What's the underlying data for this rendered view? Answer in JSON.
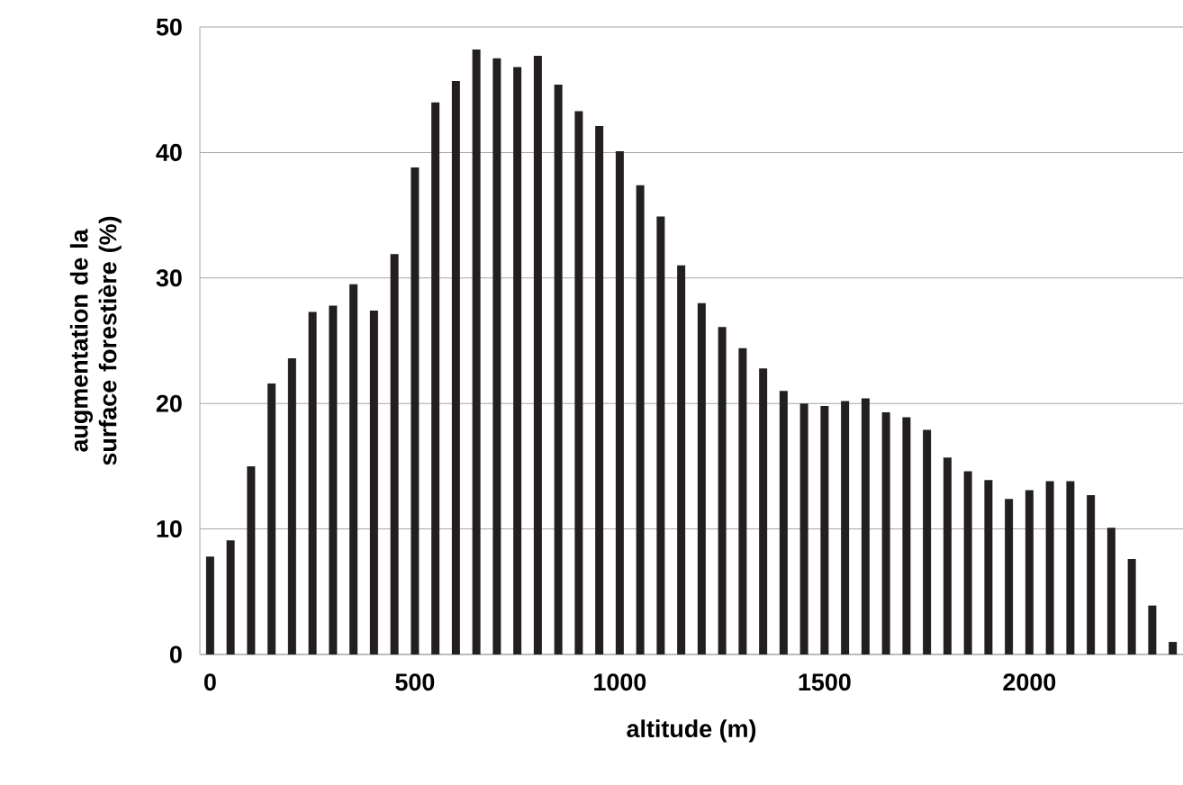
{
  "chart_data": {
    "type": "bar",
    "xlabel": "altitude (m)",
    "ylabel": "augmentation de la surface forestière (%)",
    "categories": [
      "0",
      null,
      null,
      null,
      null,
      null,
      null,
      null,
      null,
      null,
      "500",
      null,
      null,
      null,
      null,
      null,
      null,
      null,
      null,
      null,
      "1000",
      null,
      null,
      null,
      null,
      null,
      null,
      null,
      null,
      null,
      "1500",
      null,
      null,
      null,
      null,
      null,
      null,
      null,
      null,
      null,
      "2000",
      null,
      null,
      null,
      null,
      null,
      null,
      null
    ],
    "values": [
      7.8,
      9.1,
      15,
      21.6,
      23.6,
      27.3,
      27.8,
      29.5,
      27.4,
      31.9,
      38.8,
      44,
      45.7,
      48.2,
      47.5,
      46.8,
      47.7,
      45.4,
      43.3,
      42.1,
      40.1,
      37.4,
      34.9,
      31,
      28,
      26.1,
      24.4,
      22.8,
      21,
      20,
      19.8,
      20.2,
      20.4,
      19.3,
      18.9,
      17.9,
      15.7,
      14.6,
      13.9,
      12.4,
      13.1,
      13.8,
      13.8,
      12.7,
      10.1,
      7.6,
      3.9,
      1.0
    ],
    "color": "#231f20",
    "ylim": [
      0,
      50
    ],
    "yticks": [
      0,
      10,
      20,
      30,
      40,
      50
    ],
    "grid": "y"
  }
}
